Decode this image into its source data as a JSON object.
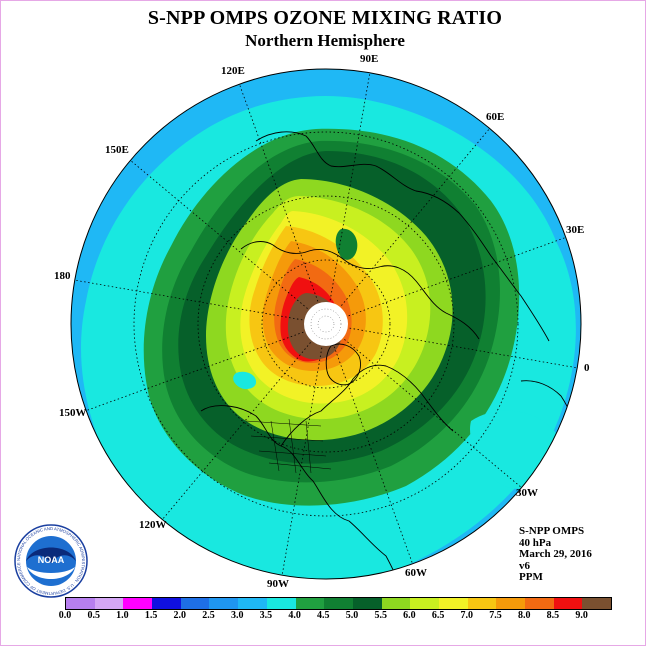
{
  "title": "S-NPP OMPS OZONE MIXING RATIO",
  "subtitle": "Northern Hemisphere",
  "longitude_labels": [
    "90E",
    "60E",
    "30E",
    "0",
    "30W",
    "60W",
    "90W",
    "120W",
    "150W",
    "180",
    "150E",
    "120E"
  ],
  "info": {
    "instrument": "S-NPP OMPS",
    "pressure": "40 hPa",
    "date": "March 29, 2016",
    "version": "v6",
    "units": "PPM"
  },
  "colorbar": {
    "ticks": [
      "0.0",
      "0.5",
      "1.0",
      "1.5",
      "2.0",
      "2.5",
      "3.0",
      "3.5",
      "4.0",
      "4.5",
      "5.0",
      "5.5",
      "6.0",
      "6.5",
      "7.0",
      "7.5",
      "8.0",
      "8.5",
      "9.0"
    ],
    "colors": [
      "#b77fef",
      "#d4a6f5",
      "#ff00ff",
      "#1010e0",
      "#1e6fe6",
      "#1f96f0",
      "#1fb8f5",
      "#19e8e0",
      "#20a040",
      "#108032",
      "#06602a",
      "#8ed820",
      "#c8f020",
      "#f2f226",
      "#f7c612",
      "#f59a0a",
      "#f26a12",
      "#f01010",
      "#7a5030"
    ]
  },
  "logo": {
    "text": "NOAA",
    "ring_text": "NATIONAL OCEANIC AND ATMOSPHERIC ADMINISTRATION · U.S. DEPARTMENT OF COMMERCE"
  }
}
